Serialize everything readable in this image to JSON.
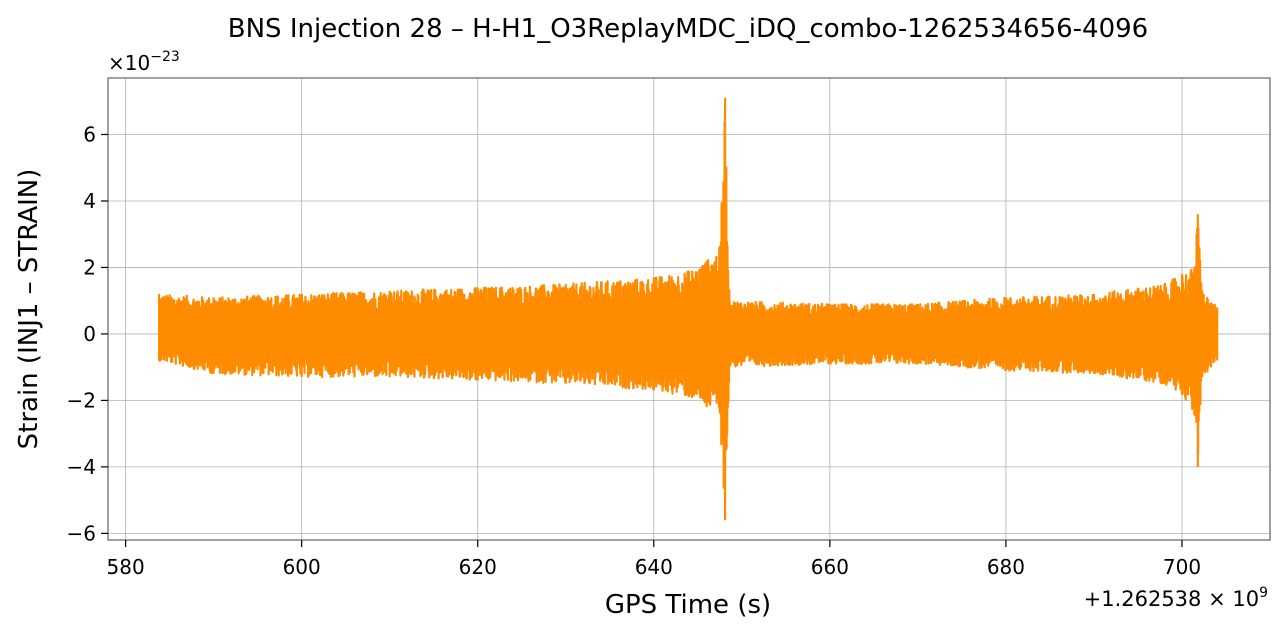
{
  "chart_data": {
    "type": "line",
    "title": "BNS Injection 28 – H-H1_O3ReplayMDC_iDQ_combo-1262534656-4096",
    "xlabel": "GPS Time (s)",
    "ylabel": "Strain (INJ1 – STRAIN)",
    "y_multiplier_label": "×10−23",
    "y_multiplier_base": "×10",
    "y_multiplier_exp": "−23",
    "x_offset_label": "+1.262538 × 10⁹",
    "x_offset_base": "+1.262538 × 10",
    "x_offset_exp": "9",
    "xlim": [
      578,
      710
    ],
    "ylim": [
      -6.2,
      7.7
    ],
    "xticks": [
      580,
      600,
      620,
      640,
      660,
      680,
      700
    ],
    "yticks": [
      6,
      4,
      2,
      0,
      -2,
      -4,
      -6
    ],
    "ytick_labels": [
      "6",
      "4",
      "2",
      "0",
      "−2",
      "−4",
      "−6"
    ],
    "grid": true,
    "color": "#ff8c00",
    "series": [
      {
        "x_range": [
          583.8,
          704.0
        ],
        "envelope": [
          [
            583.8,
            1.2,
            -0.8
          ],
          [
            590,
            1.1,
            -1.2
          ],
          [
            600,
            1.2,
            -1.3
          ],
          [
            610,
            1.3,
            -1.3
          ],
          [
            620,
            1.4,
            -1.4
          ],
          [
            630,
            1.5,
            -1.5
          ],
          [
            640,
            1.7,
            -1.7
          ],
          [
            644,
            1.9,
            -1.9
          ],
          [
            646,
            2.2,
            -2.2
          ],
          [
            647.5,
            2.6,
            -2.4
          ],
          [
            648.1,
            7.1,
            -5.6
          ],
          [
            648.6,
            1.0,
            -1.0
          ],
          [
            660,
            0.9,
            -0.9
          ],
          [
            670,
            0.9,
            -0.9
          ],
          [
            680,
            1.1,
            -1.1
          ],
          [
            690,
            1.2,
            -1.2
          ],
          [
            698,
            1.5,
            -1.5
          ],
          [
            700,
            1.8,
            -1.8
          ],
          [
            701.4,
            2.0,
            -2.4
          ],
          [
            701.8,
            3.6,
            -4.0
          ],
          [
            702.3,
            1.3,
            -1.3
          ],
          [
            704.0,
            0.8,
            -0.8
          ]
        ]
      }
    ]
  }
}
